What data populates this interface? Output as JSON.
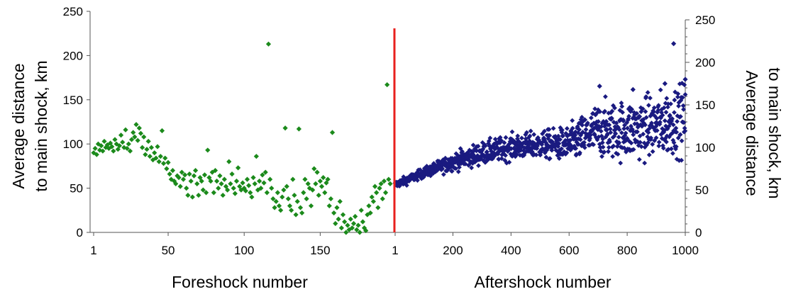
{
  "chart_data": {
    "type": "scatter",
    "title": "",
    "colors": {
      "foreshock": "#1b8a1b",
      "aftershock": "#1a1a80",
      "mainshock_line": "#e8201e",
      "axis": "#555555"
    },
    "left_panel": {
      "xlabel": "Foreshock number",
      "ylabel_line1": "Average distance",
      "ylabel_line2": "to main shock, km",
      "xlim": [
        1,
        196
      ],
      "ylim": [
        0,
        250
      ],
      "x_ticks": [
        {
          "value": 1,
          "label": "1"
        },
        {
          "value": 50,
          "label": "50"
        },
        {
          "value": 100,
          "label": "100"
        },
        {
          "value": 150,
          "label": "150"
        }
      ],
      "y_ticks": [
        {
          "value": 0,
          "label": "0"
        },
        {
          "value": 50,
          "label": "50"
        },
        {
          "value": 100,
          "label": "100"
        },
        {
          "value": 150,
          "label": "150"
        },
        {
          "value": 200,
          "label": "200"
        },
        {
          "value": 250,
          "label": "250"
        }
      ],
      "series": [
        {
          "points": [
            [
              1,
              90
            ],
            [
              2,
              95
            ],
            [
              3,
              88
            ],
            [
              4,
              100
            ],
            [
              5,
              93
            ],
            [
              6,
              98
            ],
            [
              7,
              92
            ],
            [
              8,
              103
            ],
            [
              9,
              96
            ],
            [
              10,
              99
            ],
            [
              11,
              95
            ],
            [
              12,
              101
            ],
            [
              13,
              97
            ],
            [
              14,
              92
            ],
            [
              15,
              105
            ],
            [
              16,
              100
            ],
            [
              17,
              94
            ],
            [
              18,
              98
            ],
            [
              19,
              110
            ],
            [
              20,
              102
            ],
            [
              21,
              96
            ],
            [
              22,
              116
            ],
            [
              23,
              95
            ],
            [
              24,
              100
            ],
            [
              25,
              92
            ],
            [
              26,
              105
            ],
            [
              27,
              113
            ],
            [
              28,
              108
            ],
            [
              29,
              122
            ],
            [
              30,
              104
            ],
            [
              31,
              118
            ],
            [
              32,
              112
            ],
            [
              33,
              96
            ],
            [
              34,
              108
            ],
            [
              35,
              88
            ],
            [
              36,
              94
            ],
            [
              37,
              103
            ],
            [
              38,
              86
            ],
            [
              39,
              96
            ],
            [
              40,
              82
            ],
            [
              41,
              90
            ],
            [
              42,
              84
            ],
            [
              43,
              97
            ],
            [
              44,
              80
            ],
            [
              45,
              86
            ],
            [
              46,
              115
            ],
            [
              47,
              78
            ],
            [
              48,
              84
            ],
            [
              49,
              72
            ],
            [
              50,
              79
            ],
            [
              51,
              66
            ],
            [
              52,
              60
            ],
            [
              53,
              70
            ],
            [
              54,
              58
            ],
            [
              55,
              55
            ],
            [
              56,
              64
            ],
            [
              57,
              62
            ],
            [
              58,
              52
            ],
            [
              59,
              68
            ],
            [
              60,
              60
            ],
            [
              61,
              65
            ],
            [
              62,
              50
            ],
            [
              63,
              42
            ],
            [
              64,
              66
            ],
            [
              65,
              58
            ],
            [
              66,
              40
            ],
            [
              67,
              64
            ],
            [
              68,
              70
            ],
            [
              69,
              55
            ],
            [
              70,
              42
            ],
            [
              71,
              62
            ],
            [
              72,
              58
            ],
            [
              73,
              48
            ],
            [
              74,
              65
            ],
            [
              75,
              45
            ],
            [
              76,
              93
            ],
            [
              77,
              62
            ],
            [
              78,
              58
            ],
            [
              79,
              68
            ],
            [
              80,
              45
            ],
            [
              81,
              70
            ],
            [
              82,
              58
            ],
            [
              83,
              50
            ],
            [
              84,
              64
            ],
            [
              85,
              55
            ],
            [
              86,
              42
            ],
            [
              87,
              60
            ],
            [
              88,
              52
            ],
            [
              89,
              48
            ],
            [
              90,
              80
            ],
            [
              91,
              55
            ],
            [
              92,
              66
            ],
            [
              93,
              50
            ],
            [
              94,
              44
            ],
            [
              95,
              58
            ],
            [
              96,
              73
            ],
            [
              97,
              52
            ],
            [
              98,
              48
            ],
            [
              99,
              56
            ],
            [
              100,
              50
            ],
            [
              101,
              47
            ],
            [
              102,
              60
            ],
            [
              103,
              53
            ],
            [
              104,
              45
            ],
            [
              105,
              40
            ],
            [
              106,
              62
            ],
            [
              107,
              55
            ],
            [
              108,
              86
            ],
            [
              109,
              48
            ],
            [
              110,
              58
            ],
            [
              111,
              50
            ],
            [
              112,
              65
            ],
            [
              113,
              56
            ],
            [
              114,
              68
            ],
            [
              115,
              45
            ],
            [
              116,
              213
            ],
            [
              117,
              60
            ],
            [
              118,
              50
            ],
            [
              119,
              38
            ],
            [
              120,
              28
            ],
            [
              121,
              35
            ],
            [
              122,
              45
            ],
            [
              123,
              30
            ],
            [
              124,
              25
            ],
            [
              125,
              40
            ],
            [
              126,
              48
            ],
            [
              127,
              118
            ],
            [
              128,
              52
            ],
            [
              129,
              38
            ],
            [
              130,
              30
            ],
            [
              131,
              25
            ],
            [
              132,
              60
            ],
            [
              133,
              42
            ],
            [
              134,
              20
            ],
            [
              135,
              35
            ],
            [
              136,
              117
            ],
            [
              137,
              28
            ],
            [
              138,
              22
            ],
            [
              139,
              45
            ],
            [
              140,
              60
            ],
            [
              141,
              38
            ],
            [
              142,
              55
            ],
            [
              143,
              50
            ],
            [
              144,
              30
            ],
            [
              145,
              48
            ],
            [
              146,
              72
            ],
            [
              147,
              55
            ],
            [
              148,
              68
            ],
            [
              149,
              42
            ],
            [
              150,
              58
            ],
            [
              151,
              52
            ],
            [
              152,
              62
            ],
            [
              153,
              45
            ],
            [
              154,
              56
            ],
            [
              155,
              60
            ],
            [
              156,
              30
            ],
            [
              157,
              38
            ],
            [
              158,
              113
            ],
            [
              159,
              22
            ],
            [
              160,
              10
            ],
            [
              161,
              28
            ],
            [
              162,
              15
            ],
            [
              163,
              35
            ],
            [
              164,
              5
            ],
            [
              165,
              20
            ],
            [
              166,
              12
            ],
            [
              167,
              0
            ],
            [
              168,
              8
            ],
            [
              169,
              3
            ],
            [
              170,
              15
            ],
            [
              171,
              5
            ],
            [
              172,
              10
            ],
            [
              173,
              18
            ],
            [
              174,
              3
            ],
            [
              175,
              8
            ],
            [
              176,
              0
            ],
            [
              177,
              25
            ],
            [
              178,
              12
            ],
            [
              179,
              5
            ],
            [
              180,
              2
            ],
            [
              181,
              20
            ],
            [
              182,
              30
            ],
            [
              183,
              22
            ],
            [
              184,
              40
            ],
            [
              185,
              35
            ],
            [
              186,
              52
            ],
            [
              187,
              45
            ],
            [
              188,
              28
            ],
            [
              189,
              50
            ],
            [
              190,
              55
            ],
            [
              191,
              38
            ],
            [
              192,
              58
            ],
            [
              193,
              45
            ],
            [
              194,
              167
            ],
            [
              195,
              60
            ],
            [
              196,
              55
            ]
          ]
        }
      ]
    },
    "right_panel": {
      "xlabel": "Aftershock number",
      "ylabel_line1": "Average distance",
      "ylabel_line2": "to main shock, km",
      "xlim": [
        1,
        1000
      ],
      "ylim": [
        0,
        250
      ],
      "x_ticks": [
        {
          "value": 1,
          "label": "1"
        },
        {
          "value": 200,
          "label": "200"
        },
        {
          "value": 400,
          "label": "400"
        },
        {
          "value": 600,
          "label": "600"
        },
        {
          "value": 800,
          "label": "800"
        },
        {
          "value": 1000,
          "label": "1000"
        }
      ],
      "y_ticks": [
        {
          "value": 0,
          "label": "0"
        },
        {
          "value": 50,
          "label": "50"
        },
        {
          "value": 100,
          "label": "100"
        },
        {
          "value": 150,
          "label": "150"
        },
        {
          "value": 200,
          "label": "200"
        },
        {
          "value": 250,
          "label": "250"
        }
      ],
      "trend": {
        "x": [
          1,
          100,
          200,
          300,
          400,
          500,
          600,
          700,
          800,
          900,
          1000
        ],
        "y": [
          56,
          70,
          83,
          93,
          100,
          103,
          104,
          120,
          120,
          125,
          135
        ],
        "spread": [
          3,
          4,
          7,
          9,
          10,
          11,
          14,
          22,
          24,
          26,
          28
        ],
        "count": 1000
      },
      "outliers": [
        [
          960,
          222
        ],
        [
          1000,
          180
        ],
        [
          705,
          172
        ],
        [
          820,
          168
        ],
        [
          930,
          175
        ]
      ]
    },
    "mainshock_marker": {
      "position": "between panels",
      "from": 0,
      "to": 240
    }
  }
}
